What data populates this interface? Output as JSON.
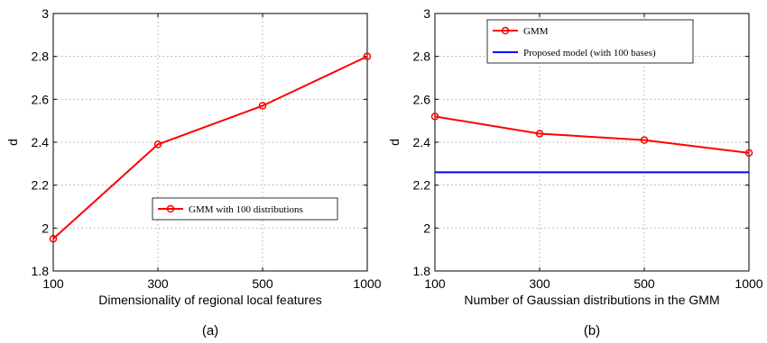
{
  "chart_data": [
    {
      "type": "line",
      "caption": "(a)",
      "xlabel": "Dimensionality of regional local features",
      "ylabel": "d",
      "categories": [
        "100",
        "300",
        "500",
        "1000"
      ],
      "ylim": [
        1.8,
        3
      ],
      "yticks": [
        "1.8",
        "2",
        "2.2",
        "2.4",
        "2.6",
        "2.8",
        "3"
      ],
      "grid": true,
      "legend_position": "lower-right",
      "series": [
        {
          "name": "GMM with 100 distributions",
          "color": "#ff0000",
          "marker": "circle",
          "values": [
            1.95,
            2.39,
            2.57,
            2.8
          ]
        }
      ]
    },
    {
      "type": "line",
      "caption": "(b)",
      "xlabel": "Number of Gaussian distributions in the GMM",
      "ylabel": "d",
      "categories": [
        "100",
        "300",
        "500",
        "1000"
      ],
      "ylim": [
        1.8,
        3
      ],
      "yticks": [
        "1.8",
        "2",
        "2.2",
        "2.4",
        "2.6",
        "2.8",
        "3"
      ],
      "grid": true,
      "legend_position": "top-left",
      "series": [
        {
          "name": "GMM",
          "color": "#ff0000",
          "marker": "circle",
          "values": [
            2.52,
            2.44,
            2.41,
            2.35
          ]
        },
        {
          "name": "Proposed model (with 100 bases)",
          "color": "#0000ff",
          "marker": "none",
          "values": [
            2.26,
            2.26,
            2.26,
            2.26
          ]
        }
      ]
    }
  ]
}
